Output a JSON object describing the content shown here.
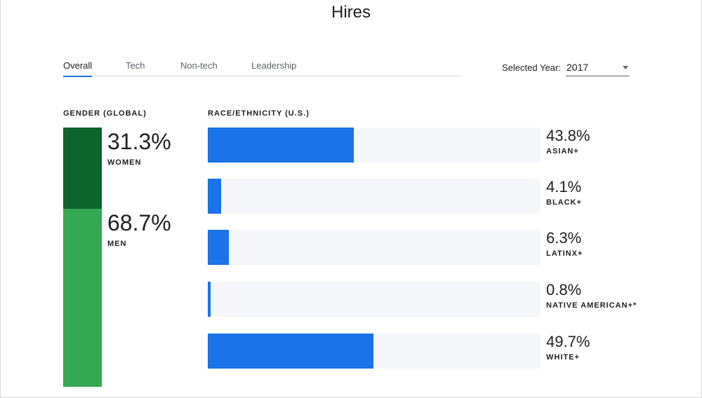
{
  "title": "Hires",
  "tabs": [
    {
      "label": "Overall",
      "active": true
    },
    {
      "label": "Tech",
      "active": false
    },
    {
      "label": "Non-tech",
      "active": false
    },
    {
      "label": "Leadership",
      "active": false
    }
  ],
  "year_selector": {
    "label": "Selected Year:",
    "value": "2017"
  },
  "colors": {
    "women": "#0d652d",
    "men": "#34a853",
    "race_bar": "#1a73e8",
    "track": "#f5f6fa",
    "tab_indicator": "#1a73e8"
  },
  "chart_data": [
    {
      "type": "bar",
      "title": "GENDER (GLOBAL)",
      "stacked": true,
      "categories": [
        "WOMEN",
        "MEN"
      ],
      "values": [
        31.3,
        68.7
      ],
      "value_labels": [
        "31.3%",
        "68.7%"
      ],
      "unit": "%"
    },
    {
      "type": "bar",
      "title": "RACE/ETHNICITY (U.S.)",
      "orientation": "horizontal",
      "categories": [
        "ASIAN+",
        "BLACK+",
        "LATINX+",
        "NATIVE AMERICAN+*",
        "WHITE+"
      ],
      "values": [
        43.8,
        4.1,
        6.3,
        0.8,
        49.7
      ],
      "value_labels": [
        "43.8%",
        "4.1%",
        "6.3%",
        "0.8%",
        "49.7%"
      ],
      "xlim": [
        0,
        100
      ],
      "unit": "%"
    }
  ]
}
